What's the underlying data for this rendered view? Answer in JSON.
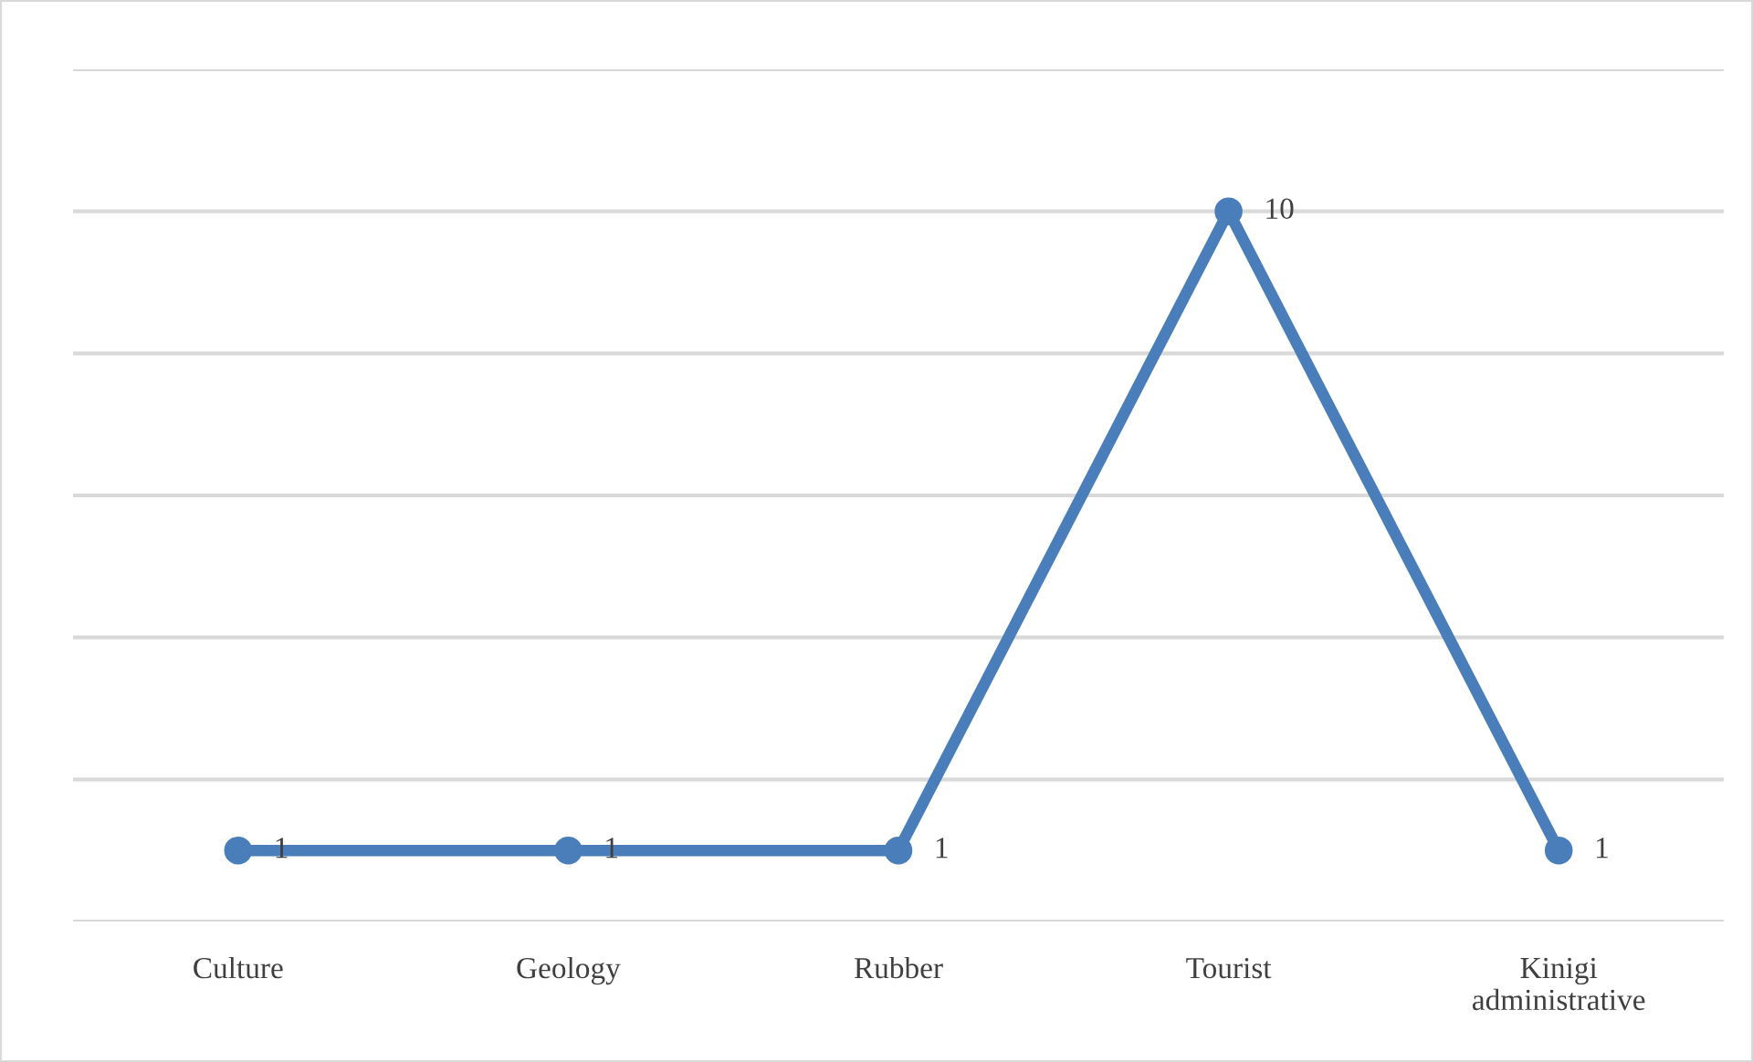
{
  "chart_data": {
    "type": "line",
    "categories": [
      "Culture",
      "Geology",
      "Rubber",
      "Tourist",
      "Kinigi administrative"
    ],
    "series": [
      {
        "color": "#4a7ebb",
        "values": [
          1,
          1,
          1,
          10,
          1
        ]
      }
    ],
    "ylim": [
      0,
      12
    ],
    "yticks": [
      {
        "value": 0,
        "label": null
      },
      {
        "value": 2,
        "label": null
      },
      {
        "value": 4,
        "label": null
      },
      {
        "value": 6,
        "label": null
      },
      {
        "value": 8,
        "label": null
      },
      {
        "value": 10,
        "label": null
      },
      {
        "value": 12,
        "label": null
      }
    ],
    "grid": "y",
    "tick_labels": "x",
    "data_labels": true,
    "marker": "circle",
    "line_style": "solid"
  }
}
